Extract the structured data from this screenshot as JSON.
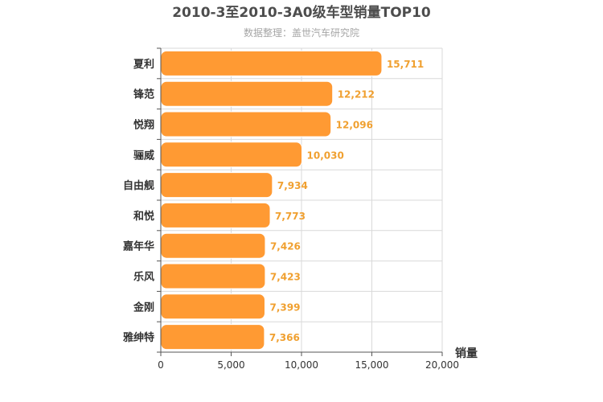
{
  "chart_data": {
    "type": "bar",
    "orientation": "horizontal",
    "title": "2010-3至2010-3A0级车型销量TOP10",
    "subtitle": "数据整理：盖世汽车研究院",
    "categories": [
      "夏利",
      "锋范",
      "悦翔",
      "骊威",
      "自由舰",
      "和悦",
      "嘉年华",
      "乐风",
      "金刚",
      "雅绅特"
    ],
    "values": [
      15711,
      12212,
      12096,
      10030,
      7934,
      7773,
      7426,
      7423,
      7399,
      7366
    ],
    "value_labels": [
      "15,711",
      "12,212",
      "12,096",
      "10,030",
      "7,934",
      "7,773",
      "7,426",
      "7,423",
      "7,399",
      "7,366"
    ],
    "xlabel": "销量",
    "ylabel": "",
    "xlim": [
      0,
      20000
    ],
    "x_ticks": [
      0,
      5000,
      10000,
      15000,
      20000
    ],
    "x_tick_labels": [
      "0",
      "5,000",
      "10,000",
      "15,000",
      "20,000"
    ],
    "grid": true,
    "legend": "none",
    "colors": {
      "bar": "#ff9a33",
      "bar_edge": "#ffffff",
      "label": "#f0a030",
      "grid": "#d9d9d9",
      "axis": "#555555"
    }
  }
}
